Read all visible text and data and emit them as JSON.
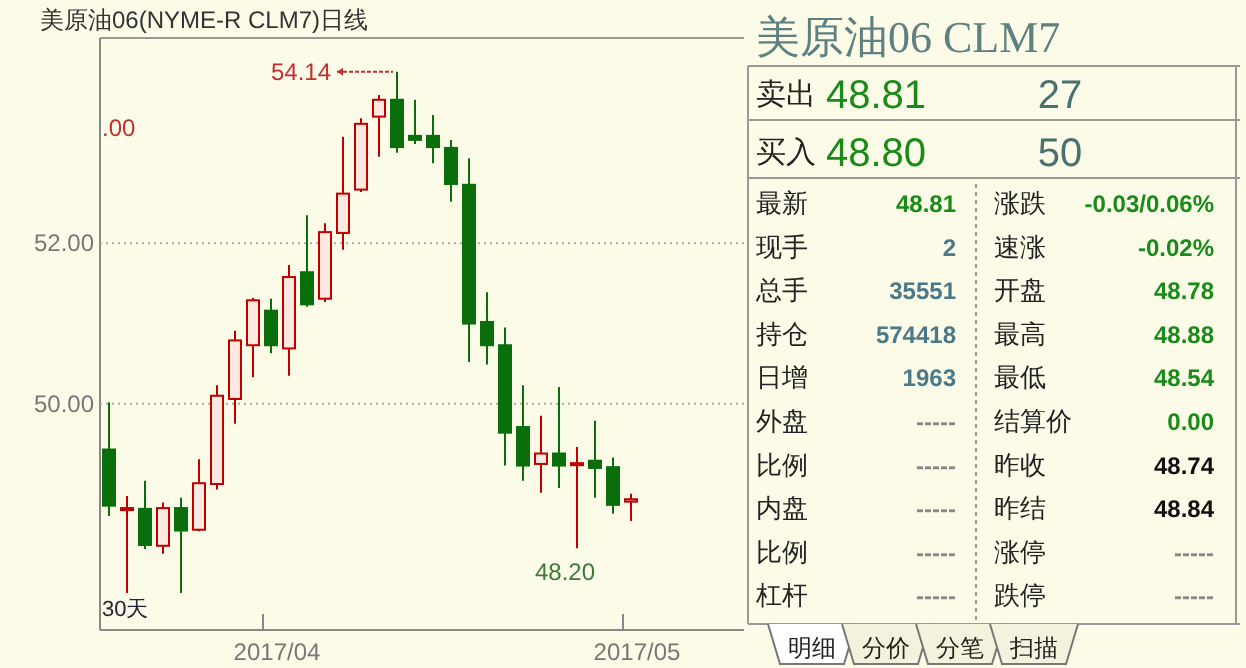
{
  "chart_data": [
    {
      "type": "candlestick",
      "title": "美原油06(NYME-R CLM7)日线",
      "categories": [
        null,
        null,
        null,
        null,
        null,
        null,
        null,
        null,
        null,
        "2017/04",
        null,
        null,
        null,
        null,
        null,
        null,
        null,
        null,
        null,
        null,
        null,
        null,
        null,
        null,
        null,
        null,
        null,
        null,
        null,
        "2017/05"
      ],
      "ohlc": [
        [
          49.43,
          50.02,
          48.6,
          48.73
        ],
        [
          48.68,
          48.85,
          47.64,
          48.7
        ],
        [
          48.69,
          49.04,
          48.19,
          48.24
        ],
        [
          48.23,
          48.77,
          48.13,
          48.7
        ],
        [
          48.7,
          48.83,
          47.64,
          48.42
        ],
        [
          48.43,
          49.31,
          48.41,
          49.01
        ],
        [
          49.0,
          50.23,
          48.93,
          50.1
        ],
        [
          50.06,
          50.91,
          49.75,
          50.79
        ],
        [
          50.73,
          51.32,
          50.33,
          51.29
        ],
        [
          51.16,
          51.31,
          50.63,
          50.73
        ],
        [
          50.69,
          51.73,
          50.35,
          51.58
        ],
        [
          51.64,
          52.35,
          51.21,
          51.24
        ],
        [
          51.31,
          52.25,
          51.27,
          52.14
        ],
        [
          52.13,
          53.33,
          51.92,
          52.62
        ],
        [
          52.67,
          53.56,
          52.64,
          53.49
        ],
        [
          53.58,
          53.85,
          53.08,
          53.79
        ],
        [
          53.79,
          54.14,
          53.13,
          53.2
        ],
        [
          53.34,
          53.79,
          53.24,
          53.29
        ],
        [
          53.34,
          53.6,
          53.0,
          53.2
        ],
        [
          53.19,
          53.29,
          52.52,
          52.74
        ],
        [
          52.73,
          53.06,
          50.52,
          51.0
        ],
        [
          51.02,
          51.39,
          50.49,
          50.73
        ],
        [
          50.73,
          50.95,
          49.23,
          49.64
        ],
        [
          49.71,
          50.23,
          49.04,
          49.23
        ],
        [
          49.25,
          49.85,
          48.89,
          49.38
        ],
        [
          49.38,
          50.21,
          48.95,
          49.23
        ],
        [
          49.24,
          49.46,
          48.2,
          49.26
        ],
        [
          49.29,
          49.79,
          48.83,
          49.2
        ],
        [
          49.21,
          49.33,
          48.63,
          48.74
        ],
        [
          48.78,
          48.88,
          48.54,
          48.81
        ]
      ],
      "colors": [
        "#0a6e0a",
        "#c00000",
        "#0a6e0a",
        "#c00000",
        "#0a6e0a",
        "#c00000",
        "#c00000",
        "#c00000",
        "#c00000",
        "#0a6e0a",
        "#c00000",
        "#0a6e0a",
        "#c00000",
        "#c00000",
        "#c00000",
        "#c00000",
        "#0a6e0a",
        "#0a6e0a",
        "#0a6e0a",
        "#0a6e0a",
        "#0a6e0a",
        "#0a6e0a",
        "#0a6e0a",
        "#0a6e0a",
        "#c00000",
        "#0a6e0a",
        "#c00000",
        "#0a6e0a",
        "#0a6e0a",
        "#c00000"
      ],
      "ylim": [
        47.18,
        54.56
      ],
      "yticks": [
        {
          "value": 52,
          "label": "52.00"
        },
        {
          "value": 50,
          "label": "50.00"
        }
      ],
      "grid": "y",
      "annotations": [
        "54.14",
        "48.20",
        ".00",
        "30天"
      ]
    },
    {
      "type": "other",
      "title": "美原油06  CLM7",
      "annotations": [
        "卖出",
        "48.81",
        "27",
        "买入",
        "48.80",
        "50",
        "最新",
        "48.81",
        "涨跌",
        "-0.03/0.06%",
        "现手",
        "2",
        "速涨",
        "-0.02%",
        "总手",
        "35551",
        "开盘",
        "48.78",
        "持仓",
        "574418",
        "最高",
        "48.88",
        "日增",
        "1963",
        "最低",
        "48.54",
        "外盘",
        "-----",
        "结算价",
        "0.00",
        "比例",
        "-----",
        "昨收",
        "48.74",
        "内盘",
        "-----",
        "昨结",
        "48.84",
        "比例",
        "-----",
        "涨停",
        "-----",
        "杠杆",
        "-----",
        "跌停",
        "-----",
        "明细",
        "分价",
        "分笔",
        "扫描"
      ]
    }
  ]
}
